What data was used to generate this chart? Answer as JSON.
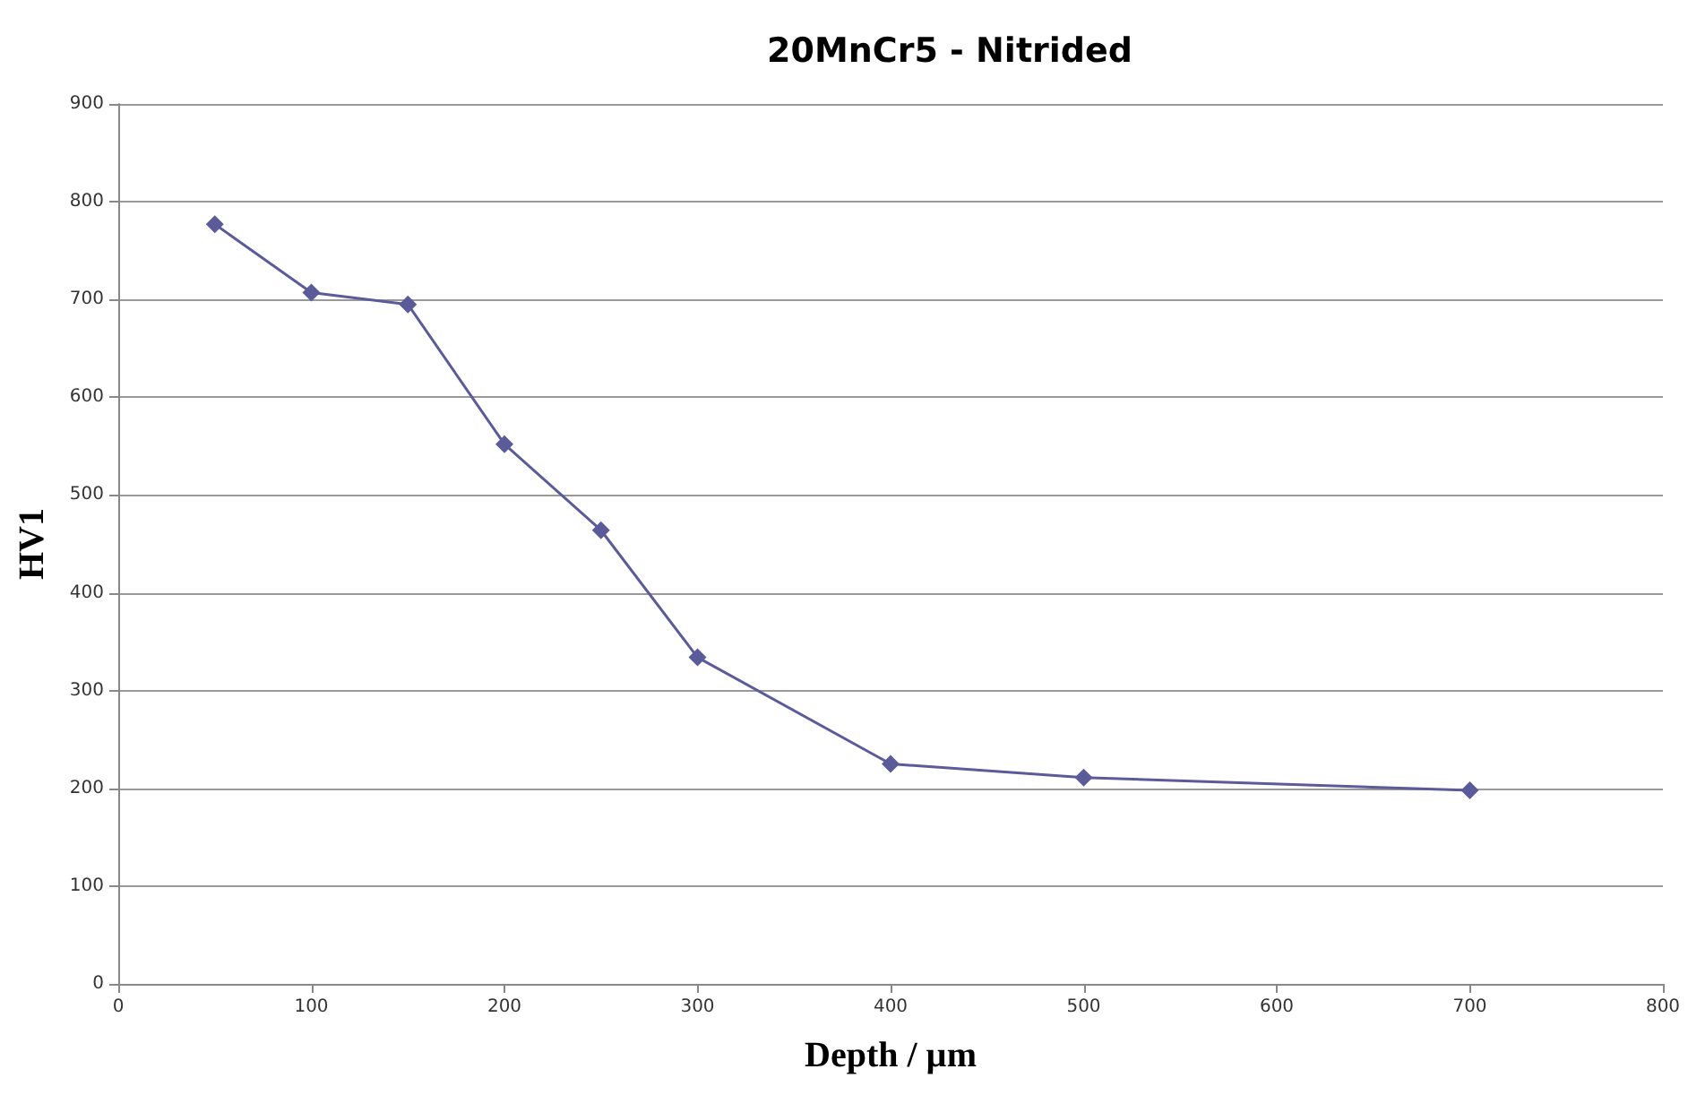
{
  "chart_data": {
    "type": "line",
    "title": "20MnCr5 - Nitrided",
    "xlabel": "Depth / µm",
    "ylabel": "HV1",
    "x": [
      50,
      100,
      150,
      200,
      250,
      300,
      400,
      500,
      700
    ],
    "series": [
      {
        "color": "#5b5b99",
        "values": [
          777,
          707,
          695,
          552,
          464,
          334,
          225,
          211,
          198
        ]
      }
    ],
    "xlim": [
      0,
      800
    ],
    "xticks": [
      0,
      100,
      200,
      300,
      400,
      500,
      600,
      700,
      800
    ],
    "ylim": [
      0,
      900
    ],
    "yticks": [
      0,
      100,
      200,
      300,
      400,
      500,
      600,
      700,
      800,
      900
    ],
    "grid": "y",
    "marker": "diamond",
    "line_style": "solid"
  }
}
